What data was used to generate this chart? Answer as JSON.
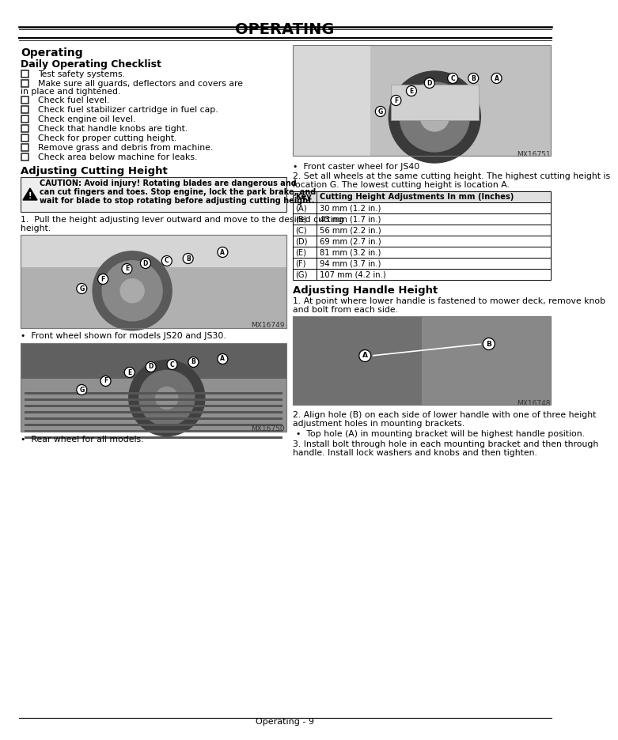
{
  "title": "OPERATING",
  "page_label": "Operating - 9",
  "left_col": {
    "section1_title": "Operating",
    "section1_sub": "Daily Operating Checklist",
    "checklist": [
      "Test safety systems.",
      "Make sure all guards, deflectors and covers are in place and tightened.",
      "Check fuel level.",
      "Check fuel stabilizer cartridge in fuel cap.",
      "Check engine oil level.",
      "Check that handle knobs are tight.",
      "Check for proper cutting height.",
      "Remove grass and debris from machine.",
      "Check area below machine for leaks."
    ],
    "section2_title": "Adjusting Cutting Height",
    "caution_line1": "CAUTION: Avoid injury! Rotating blades are dangerous and",
    "caution_line2": "can cut fingers and toes. Stop engine, lock the park brake, and",
    "caution_line3": "wait for blade to stop rotating before adjusting cutting height.",
    "step1_line1": "1.  Pull the height adjusting lever outward and move to the desired cutting",
    "step1_line2": "height.",
    "img1_label": "MX16749",
    "img1_caption": "•  Front wheel shown for models JS20 and JS30.",
    "img2_label": "MX16750",
    "img2_caption": "•  Rear wheel for all models."
  },
  "right_col": {
    "img3_label": "MX16751",
    "img3_caption": "•  Front caster wheel for JS40",
    "para2_line1": "2. Set all wheels at the same cutting height. The highest cutting height is",
    "para2_line2": "location G. The lowest cutting height is location A.",
    "table_header": [
      "Key",
      "Cutting Height Adjustments In mm (Inches)"
    ],
    "table_rows": [
      [
        "(A)",
        "30 mm (1.2 in.)"
      ],
      [
        "(B)",
        "43 mm (1.7 in.)"
      ],
      [
        "(C)",
        "56 mm (2.2 in.)"
      ],
      [
        "(D)",
        "69 mm (2.7 in.)"
      ],
      [
        "(E)",
        "81 mm (3.2 in.)"
      ],
      [
        "(F)",
        "94 mm (3.7 in.)"
      ],
      [
        "(G)",
        "107 mm (4.2 in.)"
      ]
    ],
    "section3_title": "Adjusting Handle Height",
    "step1_line1": "1. At point where lower handle is fastened to mower deck, remove knob",
    "step1_line2": "and bolt from each side.",
    "img4_label": "MX16748",
    "para2b_line1": "2. Align hole (B) on each side of lower handle with one of three height",
    "para2b_line2": "adjustment holes in mounting brackets.",
    "bullet1": "•  Top hole (A) in mounting bracket will be highest handle position.",
    "step3_line1": "3. Install bolt through hole in each mounting bracket and then through",
    "step3_line2": "handle. Install lock washers and knobs and then tighten."
  },
  "bg_color": "#ffffff",
  "text_color": "#000000"
}
